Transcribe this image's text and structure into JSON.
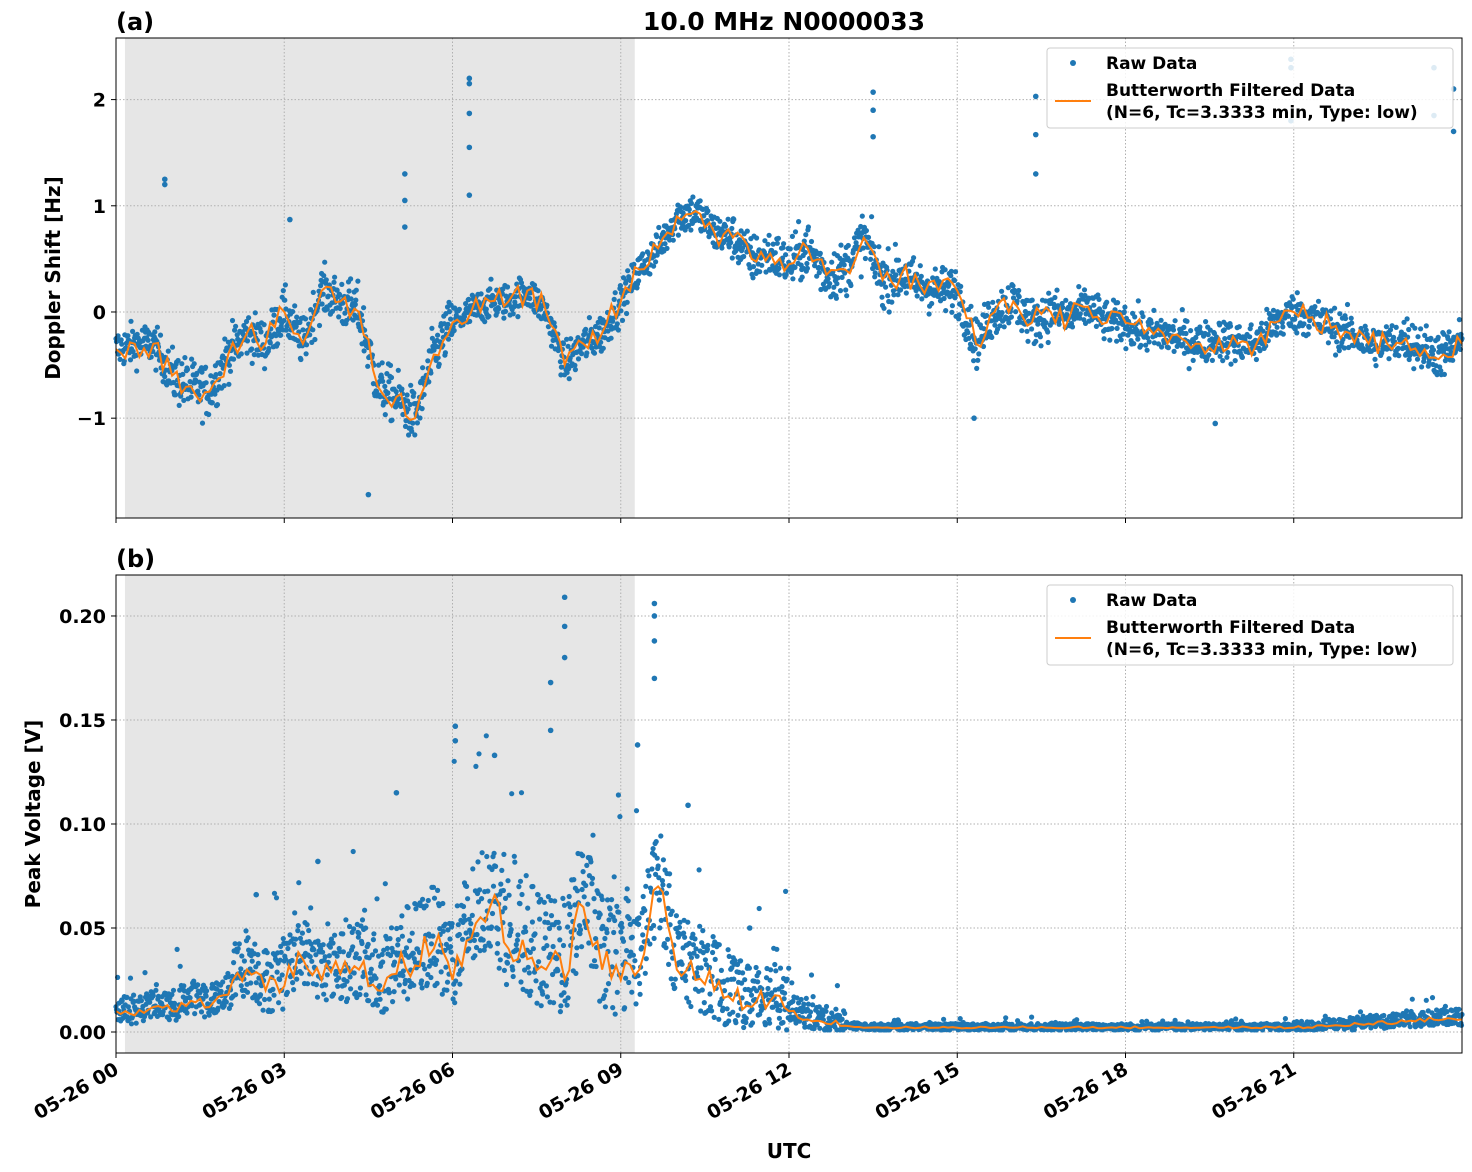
{
  "title": "10.0 MHz N0000033",
  "xlabel": "UTC",
  "colors": {
    "raw": "#1f77b4",
    "filtered": "#ff7f0e",
    "shade": "#e6e6e6",
    "grid": "#b0b0b0"
  },
  "legend": {
    "raw": "Raw Data",
    "filtered_line1": "Butterworth Filtered Data",
    "filtered_line2": "(N=6, Tc=3.3333 min, Type: low)",
    "placement": "top-right"
  },
  "x_ticks": {
    "hours": [
      0,
      3,
      6,
      9,
      12,
      15,
      18,
      21
    ],
    "labels": [
      "05-26 00",
      "05-26 03",
      "05-26 06",
      "05-26 09",
      "05-26 12",
      "05-26 15",
      "05-26 18",
      "05-26 21"
    ]
  },
  "xlim_hours": [
    0,
    24
  ],
  "shaded_interval_hours": [
    0.16,
    9.25
  ],
  "chart_data": [
    {
      "type": "scatter+line",
      "panel_label": "(a)",
      "ylabel": "Doppler Shift [Hz]",
      "ylim": [
        -1.94,
        2.58
      ],
      "y_ticks": [
        -1,
        0,
        1,
        2
      ],
      "y_tick_labels": [
        "−1",
        "0",
        "1",
        "2"
      ],
      "grid": true,
      "sample_interval_min": 20,
      "filtered": [
        -0.35,
        -0.3,
        -0.3,
        -0.6,
        -0.7,
        -0.75,
        -0.4,
        -0.2,
        -0.3,
        0.0,
        -0.3,
        0.2,
        0.1,
        0.0,
        -0.7,
        -0.8,
        -1.0,
        -0.4,
        -0.1,
        0.0,
        0.1,
        0.1,
        0.2,
        0.0,
        -0.5,
        -0.3,
        -0.2,
        0.1,
        0.4,
        0.6,
        0.9,
        0.95,
        0.75,
        0.7,
        0.5,
        0.55,
        0.45,
        0.6,
        0.35,
        0.4,
        0.7,
        0.3,
        0.35,
        0.25,
        0.2,
        0.2,
        -0.3,
        0.0,
        0.1,
        -0.1,
        0.0,
        -0.05,
        0.05,
        -0.1,
        -0.1,
        -0.2,
        -0.2,
        -0.25,
        -0.3,
        -0.25,
        -0.3,
        -0.3,
        -0.1,
        0.0,
        -0.05,
        -0.15,
        -0.2,
        -0.3,
        -0.3,
        -0.25,
        -0.35,
        -0.4,
        -0.3
      ],
      "raw_spread_per_hour": [
        0.35,
        0.45,
        0.4,
        0.4,
        0.45,
        0.45,
        0.3,
        0.3,
        0.35,
        0.3,
        0.35,
        0.4,
        0.45,
        0.45,
        0.4,
        0.4,
        0.4,
        0.35,
        0.35,
        0.35,
        0.35,
        0.35,
        0.35,
        0.4
      ],
      "raw_outliers": [
        [
          0.87,
          1.25
        ],
        [
          0.87,
          1.2
        ],
        [
          3.1,
          0.87
        ],
        [
          4.5,
          -1.72
        ],
        [
          5.15,
          1.3
        ],
        [
          5.15,
          1.05
        ],
        [
          5.15,
          0.8
        ],
        [
          6.3,
          2.2
        ],
        [
          6.3,
          2.15
        ],
        [
          6.3,
          1.87
        ],
        [
          6.3,
          1.55
        ],
        [
          6.3,
          1.1
        ],
        [
          13.5,
          2.07
        ],
        [
          13.5,
          1.9
        ],
        [
          13.5,
          1.65
        ],
        [
          15.3,
          -1.0
        ],
        [
          16.4,
          2.03
        ],
        [
          16.4,
          1.67
        ],
        [
          16.4,
          1.3
        ],
        [
          19.6,
          -1.05
        ],
        [
          20.95,
          2.38
        ],
        [
          20.95,
          2.3
        ],
        [
          20.95,
          1.8
        ],
        [
          23.5,
          2.3
        ],
        [
          23.5,
          1.85
        ],
        [
          23.85,
          2.1
        ],
        [
          23.85,
          1.7
        ]
      ]
    },
    {
      "type": "scatter+line",
      "panel_label": "(b)",
      "ylabel": "Peak Voltage [V]",
      "ylim": [
        -0.0101,
        0.2197
      ],
      "y_ticks": [
        0,
        0.05,
        0.1,
        0.15,
        0.2
      ],
      "y_tick_labels": [
        "0.00",
        "0.05",
        "0.10",
        "0.15",
        "0.20"
      ],
      "grid": true,
      "sample_interval_min": 20,
      "filtered": [
        0.01,
        0.008,
        0.012,
        0.01,
        0.015,
        0.012,
        0.018,
        0.03,
        0.02,
        0.022,
        0.035,
        0.025,
        0.028,
        0.03,
        0.02,
        0.028,
        0.032,
        0.04,
        0.025,
        0.045,
        0.06,
        0.04,
        0.035,
        0.03,
        0.025,
        0.06,
        0.03,
        0.025,
        0.03,
        0.07,
        0.03,
        0.025,
        0.02,
        0.015,
        0.012,
        0.015,
        0.01,
        0.006,
        0.004,
        0.003,
        0.002,
        0.002,
        0.002,
        0.002,
        0.002,
        0.002,
        0.002,
        0.002,
        0.002,
        0.002,
        0.002,
        0.002,
        0.002,
        0.002,
        0.002,
        0.002,
        0.002,
        0.002,
        0.002,
        0.002,
        0.002,
        0.002,
        0.002,
        0.002,
        0.002,
        0.003,
        0.003,
        0.004,
        0.004,
        0.005,
        0.005,
        0.006,
        0.006
      ],
      "raw_spread_per_hour": [
        0.008,
        0.01,
        0.02,
        0.02,
        0.025,
        0.03,
        0.035,
        0.035,
        0.035,
        0.03,
        0.025,
        0.02,
        0.008,
        0.002,
        0.002,
        0.002,
        0.002,
        0.002,
        0.002,
        0.002,
        0.002,
        0.003,
        0.004,
        0.005
      ],
      "raw_outliers": [
        [
          2.5,
          0.066
        ],
        [
          3.6,
          0.082
        ],
        [
          5.0,
          0.115
        ],
        [
          6.05,
          0.147
        ],
        [
          6.05,
          0.14
        ],
        [
          6.75,
          0.133
        ],
        [
          7.75,
          0.168
        ],
        [
          7.75,
          0.145
        ],
        [
          8.0,
          0.209
        ],
        [
          8.0,
          0.195
        ],
        [
          8.0,
          0.18
        ],
        [
          9.3,
          0.138
        ],
        [
          9.6,
          0.206
        ],
        [
          9.6,
          0.2
        ],
        [
          9.6,
          0.188
        ],
        [
          9.6,
          0.17
        ],
        [
          10.2,
          0.109
        ],
        [
          11.3,
          0.05
        ]
      ]
    }
  ]
}
